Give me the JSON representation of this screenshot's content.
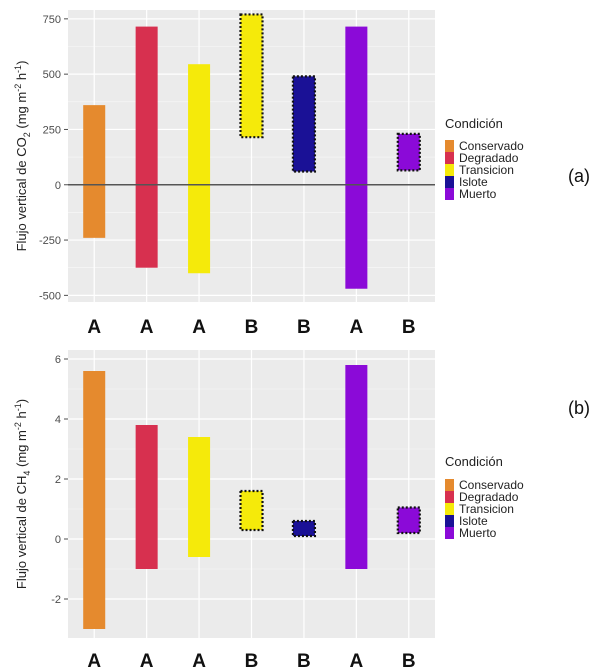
{
  "chart_data": [
    {
      "type": "bar",
      "panel_label": "(a)",
      "title": "",
      "ylabel_pre": "Flujo vertical de CO",
      "ylabel_gas_sub": "2",
      "ylabel_unit_open": " (mg m",
      "ylabel_exp1": "-2",
      "ylabel_unit_mid": " h",
      "ylabel_exp2": "-1",
      "ylabel_unit_close": ")",
      "ylim": [
        -530,
        790
      ],
      "yticks": [
        -500,
        -250,
        0,
        250,
        500,
        750
      ],
      "ytick_labels": [
        "-500",
        "-250",
        "0",
        "250",
        "500",
        "750"
      ],
      "zero_line": true,
      "grid": true,
      "categories": [
        "A",
        "A",
        "A",
        "B",
        "B",
        "A",
        "B"
      ],
      "bars": [
        {
          "condition": "Conservado",
          "ymin": -240,
          "ymax": 360,
          "dotted_border": false
        },
        {
          "condition": "Degradado",
          "ymin": -375,
          "ymax": 715,
          "dotted_border": false
        },
        {
          "condition": "Transicion",
          "ymin": -400,
          "ymax": 545,
          "dotted_border": false
        },
        {
          "condition": "Transicion",
          "ymin": 215,
          "ymax": 770,
          "dotted_border": true
        },
        {
          "condition": "Islote",
          "ymin": 60,
          "ymax": 490,
          "dotted_border": true
        },
        {
          "condition": "Muerto",
          "ymin": -470,
          "ymax": 715,
          "dotted_border": false
        },
        {
          "condition": "Muerto",
          "ymin": 65,
          "ymax": 230,
          "dotted_border": true
        }
      ],
      "legend": {
        "title": "Condición",
        "placement": "right",
        "entries": [
          "Conservado",
          "Degradado",
          "Transicion",
          "Islote",
          "Muerto"
        ]
      }
    },
    {
      "type": "bar",
      "panel_label": "(b)",
      "title": "",
      "ylabel_pre": "Flujo vertical de CH",
      "ylabel_gas_sub": "4",
      "ylabel_unit_open": " (mg m",
      "ylabel_exp1": "-2",
      "ylabel_unit_mid": " h",
      "ylabel_exp2": "-1",
      "ylabel_unit_close": ")",
      "ylim": [
        -3.3,
        6.3
      ],
      "yticks": [
        -2,
        0,
        2,
        4,
        6
      ],
      "ytick_labels": [
        "-2",
        "0",
        "2",
        "4",
        "6"
      ],
      "zero_line": false,
      "grid": true,
      "categories": [
        "A",
        "A",
        "A",
        "B",
        "B",
        "A",
        "B"
      ],
      "bars": [
        {
          "condition": "Conservado",
          "ymin": -3.0,
          "ymax": 5.6,
          "dotted_border": false
        },
        {
          "condition": "Degradado",
          "ymin": -1.0,
          "ymax": 3.8,
          "dotted_border": false
        },
        {
          "condition": "Transicion",
          "ymin": -0.6,
          "ymax": 3.4,
          "dotted_border": false
        },
        {
          "condition": "Transicion",
          "ymin": 0.3,
          "ymax": 1.6,
          "dotted_border": true
        },
        {
          "condition": "Islote",
          "ymin": 0.1,
          "ymax": 0.6,
          "dotted_border": true
        },
        {
          "condition": "Muerto",
          "ymin": -1.0,
          "ymax": 5.8,
          "dotted_border": false
        },
        {
          "condition": "Muerto",
          "ymin": 0.2,
          "ymax": 1.05,
          "dotted_border": true
        }
      ],
      "legend": {
        "title": "Condición",
        "placement": "right",
        "entries": [
          "Conservado",
          "Degradado",
          "Transicion",
          "Islote",
          "Muerto"
        ]
      }
    }
  ],
  "condition_colors": {
    "Conservado": "#e58a2e",
    "Degradado": "#d7304f",
    "Transicion": "#f5ea0a",
    "Islote": "#1a1196",
    "Muerto": "#8b0ad8"
  },
  "panel_background": "#ebebeb",
  "grid_color": "#ffffff",
  "zero_line_color": "#555555"
}
